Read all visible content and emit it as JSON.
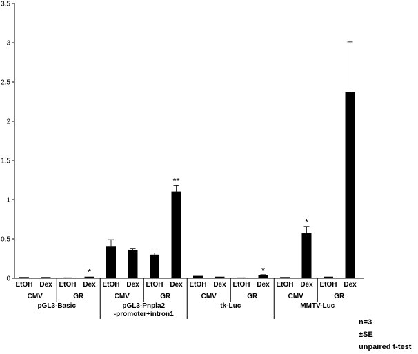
{
  "chart_data": {
    "type": "bar",
    "title": "",
    "xlabel": "",
    "ylabel": "",
    "ylim": [
      0,
      3.5
    ],
    "yticks": [
      "0",
      "0.5",
      "1",
      "1.5",
      "2",
      "2.5",
      "3",
      "3.5"
    ],
    "grid": false,
    "bar_color": "#000000",
    "categories": [
      {
        "treatment": "EtOH",
        "receptor": "CMV",
        "construct": "pGL3-Basic"
      },
      {
        "treatment": "Dex",
        "receptor": "CMV",
        "construct": "pGL3-Basic"
      },
      {
        "treatment": "EtOH",
        "receptor": "GR",
        "construct": "pGL3-Basic"
      },
      {
        "treatment": "Dex",
        "receptor": "GR",
        "construct": "pGL3-Basic"
      },
      {
        "treatment": "EtOH",
        "receptor": "CMV",
        "construct": "pGL3-Pnpla2 -promoter+intron1"
      },
      {
        "treatment": "Dex",
        "receptor": "CMV",
        "construct": "pGL3-Pnpla2 -promoter+intron1"
      },
      {
        "treatment": "EtOH",
        "receptor": "GR",
        "construct": "pGL3-Pnpla2 -promoter+intron1"
      },
      {
        "treatment": "Dex",
        "receptor": "GR",
        "construct": "pGL3-Pnpla2 -promoter+intron1"
      },
      {
        "treatment": "EtOH",
        "receptor": "CMV",
        "construct": "tk-Luc"
      },
      {
        "treatment": "Dex",
        "receptor": "CMV",
        "construct": "tk-Luc"
      },
      {
        "treatment": "EtOH",
        "receptor": "GR",
        "construct": "tk-Luc"
      },
      {
        "treatment": "Dex",
        "receptor": "GR",
        "construct": "tk-Luc"
      },
      {
        "treatment": "EtOH",
        "receptor": "CMV",
        "construct": "MMTV-Luc"
      },
      {
        "treatment": "Dex",
        "receptor": "CMV",
        "construct": "MMTV-Luc"
      },
      {
        "treatment": "EtOH",
        "receptor": "GR",
        "construct": "MMTV-Luc"
      },
      {
        "treatment": "Dex",
        "receptor": "GR",
        "construct": "MMTV-Luc"
      }
    ],
    "values": [
      0.015,
      0.015,
      0.01,
      0.02,
      0.41,
      0.36,
      0.3,
      1.1,
      0.03,
      0.02,
      0.01,
      0.04,
      0.015,
      0.57,
      0.02,
      2.37
    ],
    "errors": [
      0,
      0,
      0,
      0,
      0.08,
      0.02,
      0.02,
      0.08,
      0,
      0,
      0,
      0.005,
      0,
      0.09,
      0,
      0.64
    ],
    "significance": [
      "",
      "",
      "",
      "*",
      "",
      "",
      "",
      "**",
      "",
      "",
      "",
      "*",
      "",
      "*",
      "",
      ""
    ],
    "receptor_groups": [
      {
        "label": "CMV",
        "from": 0,
        "to": 1
      },
      {
        "label": "GR",
        "from": 2,
        "to": 3
      },
      {
        "label": "CMV",
        "from": 4,
        "to": 5
      },
      {
        "label": "GR",
        "from": 6,
        "to": 7
      },
      {
        "label": "CMV",
        "from": 8,
        "to": 9
      },
      {
        "label": "GR",
        "from": 10,
        "to": 11
      },
      {
        "label": "CMV",
        "from": 12,
        "to": 13
      },
      {
        "label": "GR",
        "from": 14,
        "to": 15
      }
    ],
    "construct_groups": [
      {
        "lines": [
          "pGL3-Basic"
        ],
        "from": 0,
        "to": 3
      },
      {
        "lines": [
          "pGL3-Pnpla2",
          "-promoter+intron1"
        ],
        "from": 4,
        "to": 7
      },
      {
        "lines": [
          "tk-Luc"
        ],
        "from": 8,
        "to": 11
      },
      {
        "lines": [
          "MMTV-Luc"
        ],
        "from": 12,
        "to": 15
      }
    ]
  },
  "notes": {
    "n": "n=3",
    "error": "±SE",
    "test": "unpaired t-test"
  }
}
